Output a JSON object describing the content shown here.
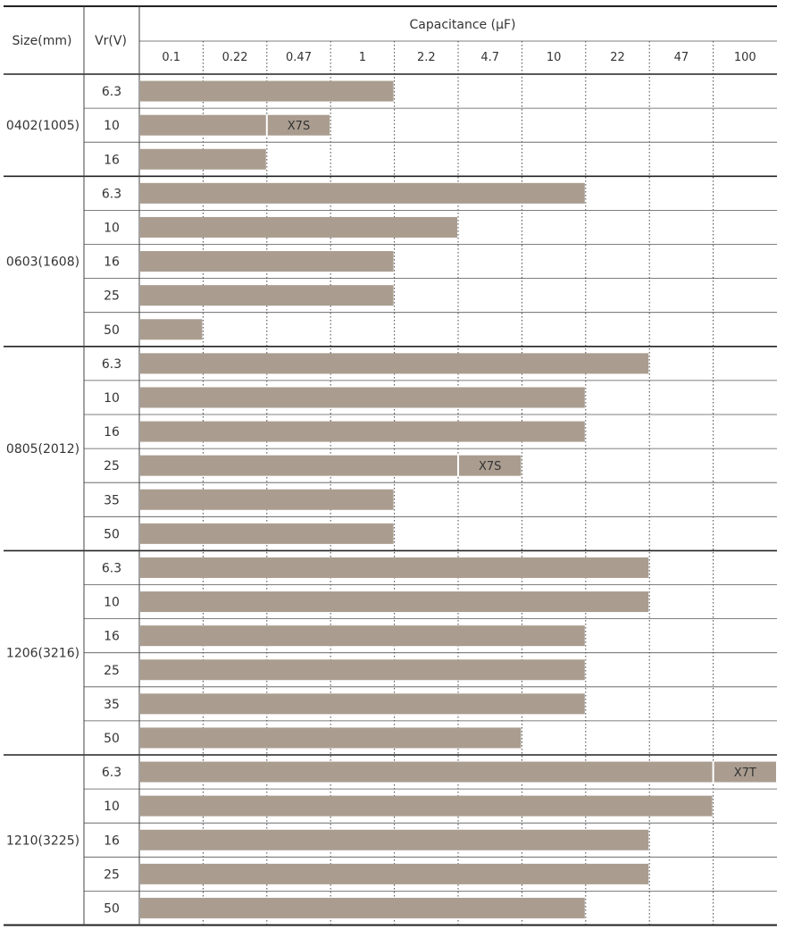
{
  "chart_data": {
    "type": "bar",
    "orientation": "horizontal",
    "column_headers": {
      "size": "Size(mm)",
      "voltage": "Vr(V)",
      "capacitance": "Capacitance (µF)"
    },
    "capacitance_ticks": [
      "0.1",
      "0.22",
      "0.47",
      "1",
      "2.2",
      "4.7",
      "10",
      "22",
      "47",
      "100"
    ],
    "bar_color": "#aa9d90",
    "groups": [
      {
        "size": "0402(1005)",
        "rows": [
          {
            "vr": "6.3",
            "max": "1"
          },
          {
            "vr": "10",
            "max": "0.47",
            "label": "X7S",
            "label_col": "0.47"
          },
          {
            "vr": "16",
            "max": "0.22"
          }
        ]
      },
      {
        "size": "0603(1608)",
        "rows": [
          {
            "vr": "6.3",
            "max": "10"
          },
          {
            "vr": "10",
            "max": "2.2"
          },
          {
            "vr": "16",
            "max": "1"
          },
          {
            "vr": "25",
            "max": "1"
          },
          {
            "vr": "50",
            "max": "0.1"
          }
        ]
      },
      {
        "size": "0805(2012)",
        "rows": [
          {
            "vr": "6.3",
            "max": "22"
          },
          {
            "vr": "10",
            "max": "10"
          },
          {
            "vr": "16",
            "max": "10"
          },
          {
            "vr": "25",
            "max": "4.7",
            "label": "X7S",
            "label_col": "4.7"
          },
          {
            "vr": "35",
            "max": "1"
          },
          {
            "vr": "50",
            "max": "1"
          }
        ]
      },
      {
        "size": "1206(3216)",
        "rows": [
          {
            "vr": "6.3",
            "max": "22"
          },
          {
            "vr": "10",
            "max": "22"
          },
          {
            "vr": "16",
            "max": "10"
          },
          {
            "vr": "25",
            "max": "10"
          },
          {
            "vr": "35",
            "max": "10"
          },
          {
            "vr": "50",
            "max": "4.7"
          }
        ]
      },
      {
        "size": "1210(3225)",
        "rows": [
          {
            "vr": "6.3",
            "max": "100",
            "label": "X7T",
            "label_col": "100"
          },
          {
            "vr": "10",
            "max": "47"
          },
          {
            "vr": "16",
            "max": "22"
          },
          {
            "vr": "25",
            "max": "22"
          },
          {
            "vr": "50",
            "max": "10"
          }
        ]
      }
    ]
  }
}
